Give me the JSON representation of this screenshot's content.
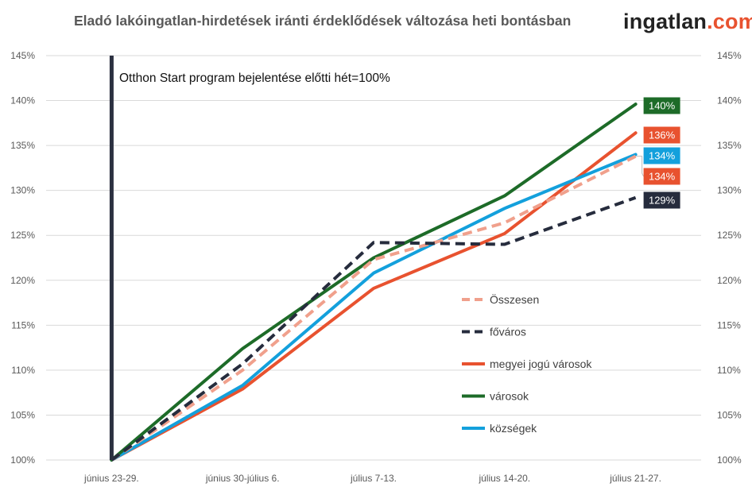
{
  "title": "Eladó lakóingatlan-hirdetések iránti érdeklődések változása heti bontásban",
  "logo": {
    "part1": "ingatlan",
    "part2": ".com"
  },
  "colors": {
    "osszesen": "#f0a08c",
    "fovaros": "#262c3d",
    "megyei": "#e8522f",
    "varosok": "#1d6b28",
    "kozsegek": "#13a0dc",
    "grid": "#d9d9d9",
    "marker": "#2b3040"
  },
  "chart_data": {
    "type": "line",
    "categories": [
      "június 23-29.",
      "június 30-július 6.",
      "július 7-13.",
      "július 14-20.",
      "július 21-27."
    ],
    "ylim": [
      100,
      145
    ],
    "yticks": [
      "100%",
      "105%",
      "110%",
      "115%",
      "120%",
      "125%",
      "130%",
      "135%",
      "140%",
      "145%"
    ],
    "grid": true,
    "legend_position": "right-center",
    "annotation": "Otthon Start program bejelentése előtti hét=100%",
    "series": [
      {
        "name": "Összesen",
        "key": "osszesen",
        "dash": true,
        "values": [
          100,
          110.0,
          122.3,
          126.4,
          133.8
        ]
      },
      {
        "name": "főváros",
        "key": "fovaros",
        "dash": true,
        "values": [
          100,
          110.7,
          124.2,
          124.0,
          129.2
        ]
      },
      {
        "name": "megyei jogú városok",
        "key": "megyei",
        "dash": false,
        "values": [
          100,
          107.9,
          119.1,
          125.2,
          136.4
        ]
      },
      {
        "name": "városok",
        "key": "varosok",
        "dash": false,
        "values": [
          100,
          112.4,
          122.5,
          129.4,
          139.6
        ]
      },
      {
        "name": "községek",
        "key": "kozsegek",
        "dash": false,
        "values": [
          100,
          108.3,
          120.8,
          128.0,
          134.0
        ]
      }
    ],
    "data_labels": [
      {
        "text": "140%",
        "key": "varosok"
      },
      {
        "text": "136%",
        "key": "megyei"
      },
      {
        "text": "134%",
        "key": "kozsegek"
      },
      {
        "text": "134%",
        "key": "megyei_osszesen"
      },
      {
        "text": "129%",
        "key": "fovaros"
      }
    ]
  }
}
